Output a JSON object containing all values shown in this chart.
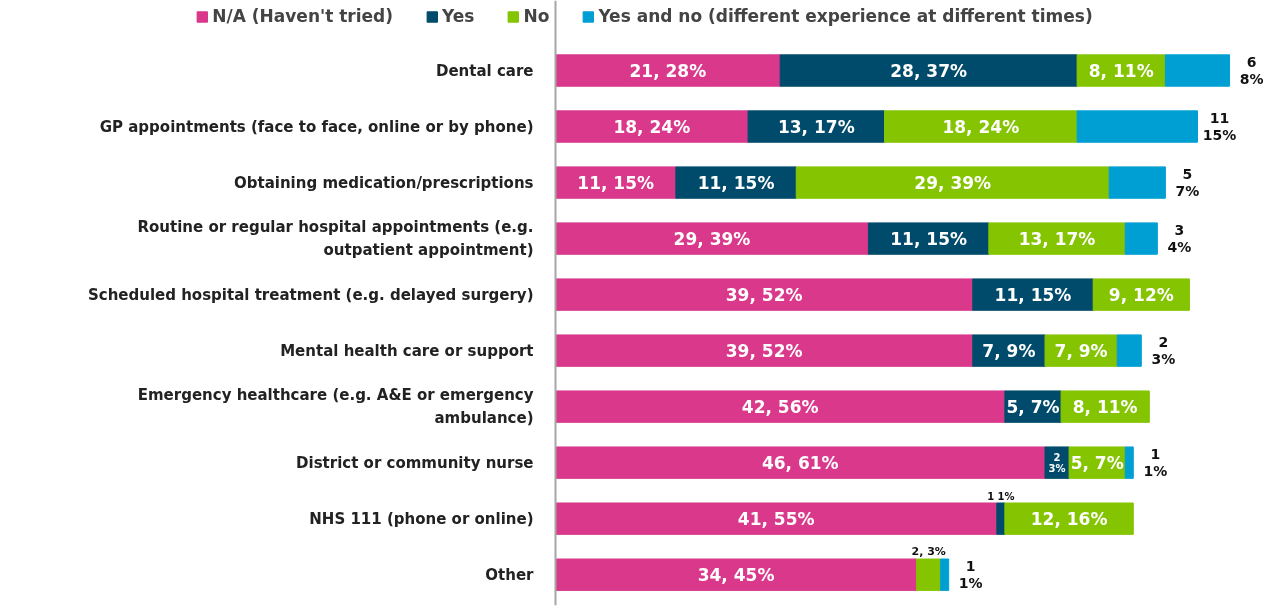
{
  "chart_data": {
    "type": "bar",
    "orientation": "horizontal",
    "stacked": true,
    "legend": "top",
    "grid": false,
    "categories": [
      "Dental care",
      "GP appointments (face to face, online or by phone)",
      "Obtaining medication/prescriptions",
      "Routine or regular hospital appointments (e.g. outpatient appointment)",
      "Scheduled hospital treatment (e.g. delayed surgery)",
      "Mental health care or support",
      "Emergency healthcare (e.g. A&E or emergency ambulance)",
      "District or community nurse",
      "NHS 111 (phone or online)",
      "Other"
    ],
    "series": [
      {
        "name": "N/A (Haven't tried)",
        "color": "#d9388b",
        "values": [
          28,
          24,
          15,
          39,
          52,
          52,
          56,
          61,
          55,
          45
        ],
        "value_labels": [
          "21, 28%",
          "18, 24%",
          "11, 15%",
          "29, 39%",
          "39, 52%",
          "39, 52%",
          "42, 56%",
          "46, 61%",
          "41, 55%",
          "34, 45%"
        ]
      },
      {
        "name": "Yes",
        "color": "#004b6b",
        "values": [
          37,
          17,
          15,
          15,
          15,
          9,
          7,
          3,
          1,
          null
        ],
        "value_labels": [
          "28, 37%",
          "13, 17%",
          "11, 15%",
          "11, 15%",
          "11, 15%",
          "7, 9%",
          "5, 7%",
          "2\n3%",
          "1\n1%",
          null
        ]
      },
      {
        "name": "No",
        "color": "#84c400",
        "values": [
          11,
          24,
          39,
          17,
          12,
          9,
          11,
          7,
          16,
          3
        ],
        "value_labels": [
          "8, 11%",
          "18, 24%",
          "29, 39%",
          "13, 17%",
          "9, 12%",
          "7, 9%",
          "8, 11%",
          "5, 7%",
          "12, 16%",
          "2, 3%"
        ]
      },
      {
        "name": "Yes and no (different experience at different times)",
        "color": "#009fd3",
        "values": [
          8,
          15,
          7,
          4,
          null,
          3,
          null,
          1,
          null,
          1
        ],
        "value_labels": [
          "6\n8%",
          "11\n15%",
          "5\n7%",
          "3\n4%",
          null,
          "2\n3%",
          null,
          "1\n1%",
          null,
          "1\n1%"
        ]
      }
    ]
  }
}
